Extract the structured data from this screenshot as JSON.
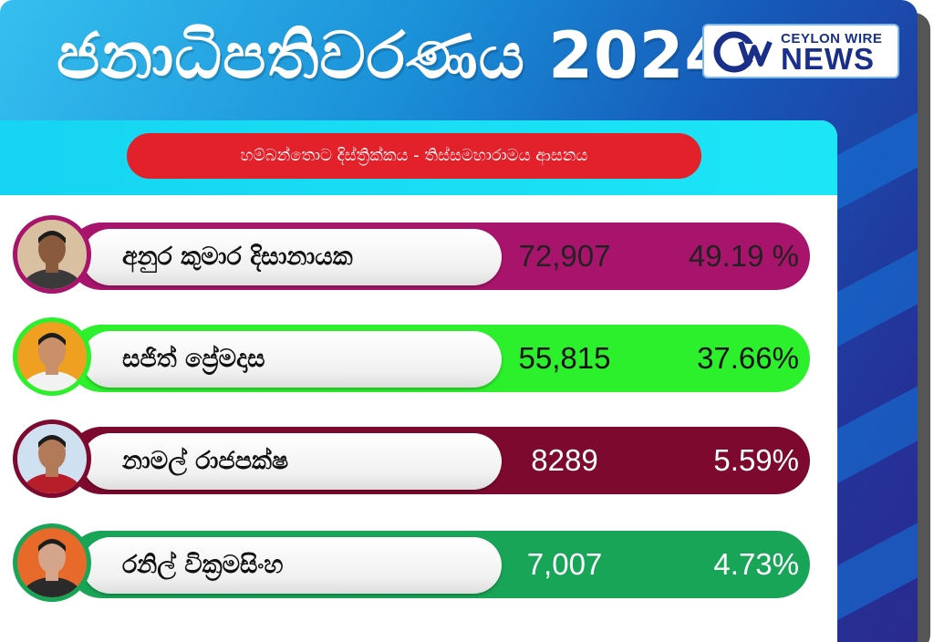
{
  "header": {
    "title": "ජනාධිපතිවරණය 2024",
    "logo": {
      "line_top": "CEYLON WIRE",
      "line_bottom": "NEWS",
      "mark": "CW"
    }
  },
  "location_label": "හම්බන්තොට  දිස්ත්‍රික්කය -  තිස්සමහාරාමය ආසනය",
  "candidates": [
    {
      "name": "අනුර කුමාර දිසානායක",
      "votes": "72,907",
      "percent": "49.19 %",
      "votes_share": 0.4919,
      "bar_color": "#a8146b",
      "text_color": "#222222",
      "border_color": "#a8146b"
    },
    {
      "name": "සජිත් ප්‍රේමදාස",
      "votes": "55,815",
      "percent": "37.66%",
      "votes_share": 0.3766,
      "bar_color": "#2bf02b",
      "text_color": "#111111",
      "border_color": "#2bf02b"
    },
    {
      "name": "නාමල් රාජපක්ෂ",
      "votes": "8289",
      "percent": "5.59%",
      "votes_share": 0.0559,
      "bar_color": "#7d0a2e",
      "text_color": "#ffffff",
      "border_color": "#7d0a2e"
    },
    {
      "name": "රනිල් වික්‍රමසිංහ",
      "votes": "7,007",
      "percent": "4.73%",
      "votes_share": 0.0473,
      "bar_color": "#19a558",
      "text_color": "#ffffff",
      "border_color": "#19a558"
    }
  ],
  "icons": [
    "cw-logo-icon",
    "candidate-photo-icon"
  ]
}
